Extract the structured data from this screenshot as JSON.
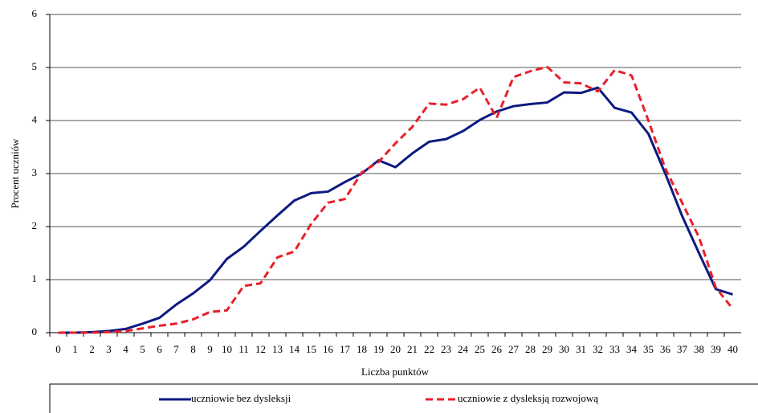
{
  "chart_data": {
    "type": "line",
    "y_label": "Procent uczniów",
    "x_label": "Liczba punktów",
    "categories": [
      "0",
      "1",
      "2",
      "3",
      "4",
      "5",
      "6",
      "7",
      "8",
      "9",
      "10",
      "11",
      "12",
      "13",
      "14",
      "15",
      "16",
      "17",
      "18",
      "19",
      "20",
      "21",
      "22",
      "23",
      "24",
      "25",
      "26",
      "27",
      "28",
      "29",
      "30",
      "31",
      "32",
      "33",
      "34",
      "35",
      "36",
      "37",
      "38",
      "39",
      "40"
    ],
    "series": [
      {
        "name": "uczniowie bez dysleksji",
        "color": "#0d1a80",
        "dash": false,
        "values": [
          0,
          0,
          0.01,
          0.03,
          0.07,
          0.17,
          0.28,
          0.53,
          0.74,
          0.99,
          1.39,
          1.62,
          1.92,
          2.21,
          2.49,
          2.63,
          2.66,
          2.84,
          3.0,
          3.25,
          3.12,
          3.38,
          3.6,
          3.65,
          3.8,
          4.01,
          4.17,
          4.27,
          4.31,
          4.34,
          4.53,
          4.52,
          4.62,
          4.24,
          4.15,
          3.75,
          3.0,
          2.2,
          1.5,
          0.82,
          0.72
        ]
      },
      {
        "name": "uczniowie z dysleksją rozwojową",
        "color": "#e8202a",
        "dash": true,
        "values": [
          0,
          0,
          0,
          0.01,
          0.03,
          0.08,
          0.13,
          0.17,
          0.25,
          0.39,
          0.42,
          0.88,
          0.93,
          1.42,
          1.53,
          2.05,
          2.45,
          2.52,
          3.02,
          3.22,
          3.57,
          3.88,
          4.32,
          4.3,
          4.4,
          4.62,
          4.05,
          4.82,
          4.93,
          5.01,
          4.72,
          4.7,
          4.55,
          4.95,
          4.85,
          4.0,
          3.1,
          2.45,
          1.8,
          0.85,
          0.45
        ]
      }
    ],
    "ylim": [
      0,
      6
    ],
    "yticks": [
      0,
      1,
      2,
      3,
      4,
      5,
      6
    ],
    "grid": true,
    "legend": "bottom"
  }
}
